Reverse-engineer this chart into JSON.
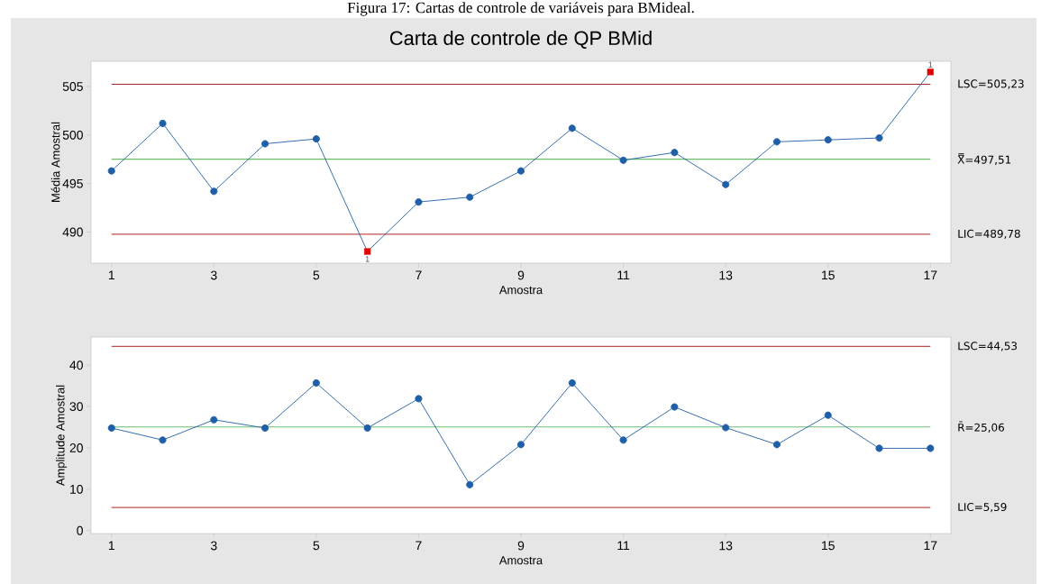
{
  "chart_data": [
    {
      "type": "line",
      "title": "Carta de controle de QP BMid",
      "xlabel": "Amostra",
      "ylabel": "Média Amostral",
      "annotations": [
        "Figura 17: Cartas de controle de variáveis para BMideal.",
        {
          "text": "1",
          "x": 6,
          "y": 488.0
        },
        {
          "text": "1",
          "x": 17,
          "y": 506.5
        }
      ],
      "x": [
        1,
        2,
        3,
        4,
        5,
        6,
        7,
        8,
        9,
        10,
        11,
        12,
        13,
        14,
        15,
        16,
        17
      ],
      "series": [
        {
          "color": "#1f5fa8",
          "marker": "circle",
          "values": [
            496.3,
            501.2,
            494.2,
            499.1,
            499.6,
            488.0,
            493.1,
            493.6,
            496.3,
            500.7,
            497.4,
            498.2,
            494.9,
            499.3,
            499.5,
            499.7,
            506.5
          ]
        },
        {
          "type": "scatter",
          "color": "#e00000",
          "marker": "square",
          "values": [
            null,
            null,
            null,
            null,
            null,
            488.0,
            null,
            null,
            null,
            null,
            null,
            null,
            null,
            null,
            null,
            null,
            506.5
          ]
        }
      ],
      "xlim": [
        0.6,
        17.4
      ],
      "xticks": [
        1,
        3,
        5,
        7,
        9,
        11,
        13,
        15,
        17
      ],
      "ylim": [
        486.8,
        507.6
      ],
      "yticks": [
        490,
        495,
        500,
        505
      ],
      "ref_lines": [
        {
          "axis": "y",
          "value": 505.23,
          "label": "LSC=505,23",
          "color": "#a52a2a"
        },
        {
          "axis": "y",
          "value": 497.51,
          "label": "X̿=497,51",
          "color": "#6dbb6d"
        },
        {
          "axis": "y",
          "value": 489.78,
          "label": "LIC=489,78",
          "color": "#c0504d"
        }
      ],
      "grid": false
    },
    {
      "type": "line",
      "xlabel": "Amostra",
      "ylabel": "Amplitude Amostral",
      "x": [
        1,
        2,
        3,
        4,
        5,
        6,
        7,
        8,
        9,
        10,
        11,
        12,
        13,
        14,
        15,
        16,
        17
      ],
      "series": [
        {
          "color": "#1f5fa8",
          "marker": "circle",
          "values": [
            24.8,
            21.9,
            26.8,
            24.8,
            35.7,
            24.8,
            31.9,
            11.1,
            20.8,
            35.7,
            21.9,
            29.9,
            24.9,
            20.8,
            27.9,
            19.9,
            19.9
          ]
        }
      ],
      "xlim": [
        0.6,
        17.4
      ],
      "xticks": [
        1,
        3,
        5,
        7,
        9,
        11,
        13,
        15,
        17
      ],
      "ylim": [
        -0.7,
        46.8
      ],
      "yticks": [
        0,
        10,
        20,
        30,
        40
      ],
      "ref_lines": [
        {
          "axis": "y",
          "value": 44.53,
          "label": "LSC=44,53",
          "color": "#c0504d"
        },
        {
          "axis": "y",
          "value": 25.06,
          "label": "R̄=25,06",
          "color": "#6dbb6d"
        },
        {
          "axis": "y",
          "value": 5.59,
          "label": "LIC=5,59",
          "color": "#c0504d"
        }
      ],
      "grid": false
    }
  ]
}
